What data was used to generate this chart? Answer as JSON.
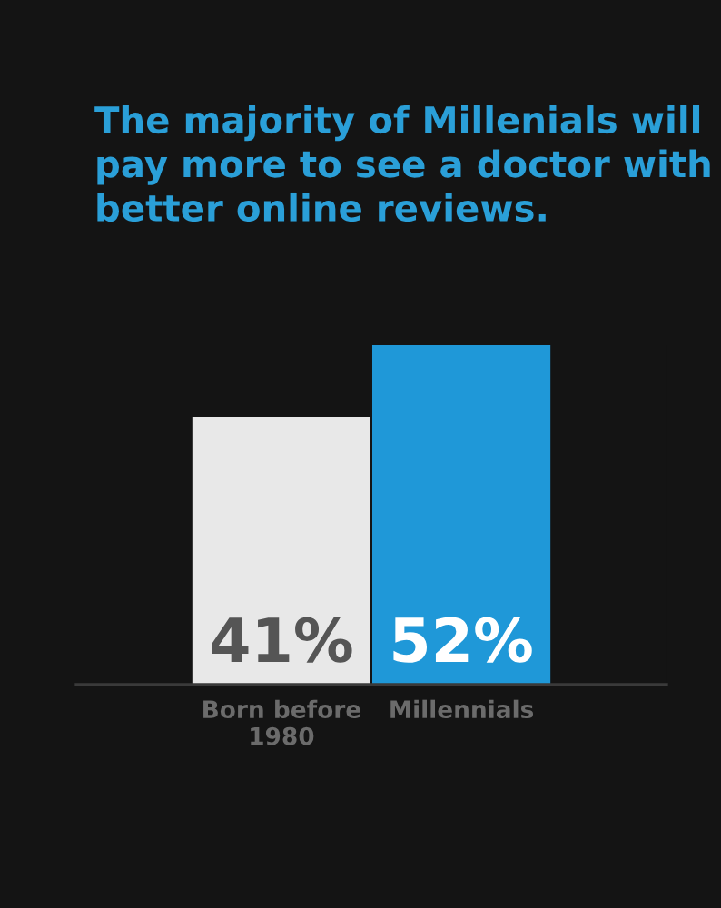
{
  "chart_data": {
    "type": "bar",
    "title": "The majority of Millenials will pay more to see a doctor with better online reviews.",
    "categories": [
      "Born before\n1980",
      "Millennials"
    ],
    "values": [
      41,
      52
    ],
    "colors": [
      "#e8e8e8",
      "#1f98d8"
    ],
    "value_labels": [
      "41%",
      "52%"
    ],
    "tick_labels": "x"
  }
}
